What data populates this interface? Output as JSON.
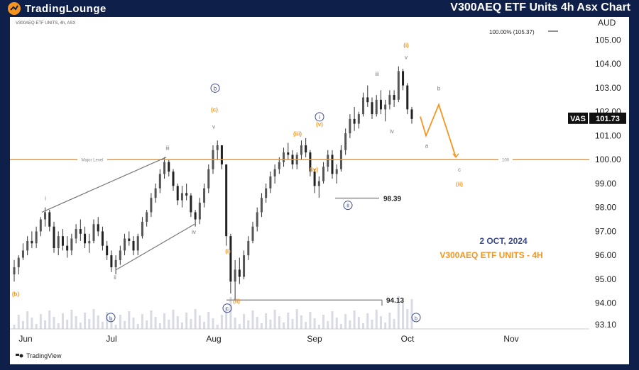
{
  "header": {
    "logo_text": "TradingLounge",
    "title": "V300AEQ ETF Units 4h Asx Chart"
  },
  "chart_header": {
    "symbol_line": "V300AEQ ETF UNITS, 4h, ASX",
    "currency": "AUD"
  },
  "footer": {
    "brand": "TradingView"
  },
  "colors": {
    "accent": "#f7941d",
    "wave_blue": "#3b4a8a",
    "level_line": "#f7941d",
    "bg": "#0e1f4a"
  },
  "chart_data": {
    "type": "candlestick",
    "title": "V300AEQ ETF UNITS - 4H",
    "date_label": "2 OCT, 2024",
    "x_ticks": [
      "Jun",
      "Jul",
      "Aug",
      "Sep",
      "Oct",
      "Nov"
    ],
    "y_ticks": [
      105.0,
      104.0,
      103.0,
      102.0,
      101.0,
      100.0,
      99.0,
      98.0,
      97.0,
      96.0,
      95.0,
      94.0,
      93.1
    ],
    "ylim": [
      93.1,
      105.37
    ],
    "fib_label": "100.00% (105.37)",
    "last_price": {
      "symbol": "VAS",
      "value": "101.73"
    },
    "major_level": {
      "label": "Major Level",
      "value": 100.0,
      "right_label": "100"
    },
    "annotated_lows": [
      {
        "label": "98.39",
        "value": 98.39
      },
      {
        "label": "94.13",
        "value": 94.13
      }
    ],
    "wave_labels": [
      {
        "text": "(b)",
        "color": "orange"
      },
      {
        "text": "i",
        "color": "gray"
      },
      {
        "text": "ii",
        "color": "gray"
      },
      {
        "text": "iii",
        "color": "gray"
      },
      {
        "text": "iv",
        "color": "gray"
      },
      {
        "text": "v",
        "color": "gray"
      },
      {
        "text": "(c)",
        "color": "orange"
      },
      {
        "text": "b",
        "color": "blue",
        "circled": true
      },
      {
        "text": "(i)",
        "color": "orange"
      },
      {
        "text": "(ii)",
        "color": "orange"
      },
      {
        "text": "c",
        "color": "blue",
        "circled": true
      },
      {
        "text": "(iii)",
        "color": "orange"
      },
      {
        "text": "(iv)",
        "color": "orange"
      },
      {
        "text": "(v)",
        "color": "orange"
      },
      {
        "text": "i",
        "color": "blue",
        "circled": true
      },
      {
        "text": "ii",
        "color": "blue",
        "circled": true
      },
      {
        "text": "a",
        "color": "gray"
      },
      {
        "text": "c",
        "color": "gray"
      }
    ],
    "grid": false,
    "candles": [
      [
        95.2,
        95.8,
        94.9,
        95.5
      ],
      [
        95.5,
        96.0,
        95.2,
        95.9
      ],
      [
        95.9,
        96.5,
        95.8,
        96.2
      ],
      [
        96.2,
        96.8,
        96.0,
        96.6
      ],
      [
        96.6,
        97.0,
        96.3,
        96.5
      ],
      [
        96.5,
        97.2,
        96.3,
        97.0
      ],
      [
        97.0,
        97.6,
        96.8,
        97.5
      ],
      [
        97.5,
        98.0,
        97.2,
        97.8
      ],
      [
        97.8,
        97.9,
        97.0,
        97.2
      ],
      [
        97.2,
        97.4,
        96.1,
        96.3
      ],
      [
        96.3,
        97.0,
        96.0,
        96.8
      ],
      [
        96.8,
        97.1,
        96.2,
        96.4
      ],
      [
        96.4,
        96.8,
        95.9,
        96.2
      ],
      [
        96.2,
        96.9,
        96.0,
        96.7
      ],
      [
        96.7,
        97.3,
        96.5,
        97.1
      ],
      [
        97.1,
        97.5,
        96.6,
        96.9
      ],
      [
        96.9,
        97.2,
        96.3,
        96.5
      ],
      [
        96.5,
        96.9,
        96.1,
        96.6
      ],
      [
        96.6,
        97.5,
        96.5,
        97.3
      ],
      [
        97.3,
        97.6,
        96.8,
        97.0
      ],
      [
        97.0,
        97.2,
        96.2,
        96.4
      ],
      [
        96.4,
        96.6,
        95.8,
        96.0
      ],
      [
        96.0,
        96.2,
        95.3,
        95.5
      ],
      [
        95.5,
        96.0,
        95.2,
        95.8
      ],
      [
        95.8,
        96.4,
        95.6,
        96.2
      ],
      [
        96.2,
        96.9,
        96.0,
        96.7
      ],
      [
        96.7,
        97.0,
        96.4,
        96.6
      ],
      [
        96.6,
        96.8,
        96.0,
        96.2
      ],
      [
        96.2,
        96.9,
        96.0,
        96.8
      ],
      [
        96.8,
        97.6,
        96.7,
        97.4
      ],
      [
        97.4,
        97.9,
        97.2,
        97.8
      ],
      [
        97.8,
        98.6,
        97.6,
        98.4
      ],
      [
        98.4,
        99.0,
        98.2,
        98.8
      ],
      [
        98.8,
        99.6,
        98.6,
        99.4
      ],
      [
        99.4,
        100.1,
        99.2,
        99.9
      ],
      [
        99.9,
        100.0,
        99.3,
        99.5
      ],
      [
        99.5,
        99.6,
        98.7,
        98.9
      ],
      [
        98.9,
        99.0,
        98.1,
        98.3
      ],
      [
        98.3,
        98.9,
        98.0,
        98.6
      ],
      [
        98.6,
        99.0,
        98.3,
        98.5
      ],
      [
        98.5,
        98.6,
        97.6,
        97.8
      ],
      [
        97.8,
        97.9,
        97.2,
        97.5
      ],
      [
        97.5,
        98.4,
        97.3,
        98.2
      ],
      [
        98.2,
        99.0,
        98.0,
        98.8
      ],
      [
        98.8,
        99.8,
        98.6,
        99.6
      ],
      [
        99.6,
        100.6,
        99.4,
        100.4
      ],
      [
        100.4,
        100.8,
        100.0,
        100.6
      ],
      [
        100.6,
        100.6,
        99.6,
        99.8
      ],
      [
        99.8,
        99.8,
        96.4,
        96.8
      ],
      [
        96.8,
        96.9,
        94.4,
        94.9
      ],
      [
        94.9,
        95.8,
        94.1,
        95.4
      ],
      [
        95.4,
        95.9,
        94.8,
        95.1
      ],
      [
        95.1,
        96.2,
        95.0,
        96.0
      ],
      [
        96.0,
        96.8,
        95.8,
        96.6
      ],
      [
        96.6,
        97.4,
        96.5,
        97.2
      ],
      [
        97.2,
        98.0,
        97.0,
        97.8
      ],
      [
        97.8,
        98.6,
        97.6,
        98.4
      ],
      [
        98.4,
        99.0,
        98.2,
        98.8
      ],
      [
        98.8,
        99.5,
        98.6,
        99.3
      ],
      [
        99.3,
        99.8,
        99.0,
        99.6
      ],
      [
        99.6,
        100.1,
        99.4,
        99.9
      ],
      [
        99.9,
        100.5,
        99.7,
        100.3
      ],
      [
        100.3,
        100.7,
        100.0,
        100.2
      ],
      [
        100.2,
        100.4,
        99.6,
        99.8
      ],
      [
        99.8,
        100.3,
        99.6,
        100.2
      ],
      [
        100.2,
        100.8,
        100.0,
        100.6
      ],
      [
        100.6,
        100.9,
        100.1,
        100.3
      ],
      [
        100.3,
        100.4,
        99.3,
        99.5
      ],
      [
        99.5,
        99.6,
        98.6,
        98.9
      ],
      [
        98.9,
        99.3,
        98.4,
        99.1
      ],
      [
        99.1,
        99.9,
        99.0,
        99.7
      ],
      [
        99.7,
        100.4,
        99.5,
        100.2
      ],
      [
        100.2,
        100.4,
        99.2,
        99.4
      ],
      [
        99.4,
        99.8,
        99.0,
        99.6
      ],
      [
        99.6,
        100.6,
        99.5,
        100.4
      ],
      [
        100.4,
        101.3,
        100.2,
        101.1
      ],
      [
        101.1,
        101.9,
        100.9,
        101.7
      ],
      [
        101.7,
        102.2,
        101.2,
        101.5
      ],
      [
        101.5,
        102.0,
        101.3,
        101.9
      ],
      [
        101.9,
        102.8,
        101.8,
        102.6
      ],
      [
        102.6,
        103.1,
        102.2,
        102.4
      ],
      [
        102.4,
        102.6,
        101.7,
        101.9
      ],
      [
        101.9,
        102.7,
        101.8,
        102.5
      ],
      [
        102.5,
        102.9,
        101.9,
        102.1
      ],
      [
        102.1,
        102.5,
        101.6,
        102.3
      ],
      [
        102.3,
        102.9,
        102.1,
        102.7
      ],
      [
        102.7,
        102.9,
        102.2,
        102.5
      ],
      [
        102.5,
        103.9,
        102.4,
        103.7
      ],
      [
        103.7,
        103.8,
        102.9,
        103.1
      ],
      [
        103.1,
        103.2,
        101.9,
        102.1
      ],
      [
        102.1,
        102.2,
        101.5,
        101.7
      ]
    ]
  }
}
